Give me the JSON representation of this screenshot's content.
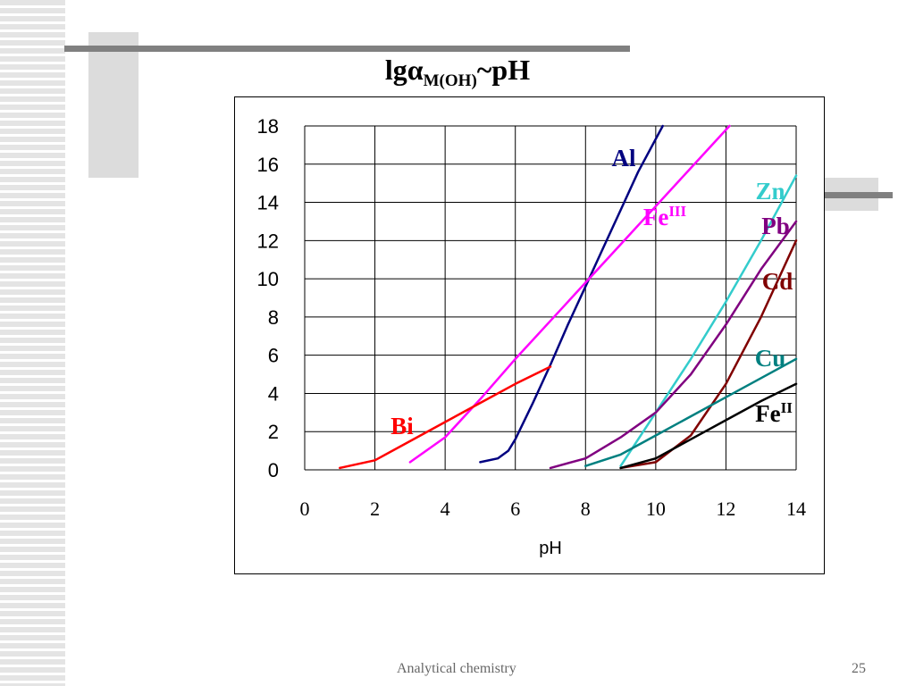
{
  "slide": {
    "title_main": "lgα",
    "title_sub": "M(OH)",
    "title_tail": "~pH",
    "footer_text": "Analytical chemistry",
    "page_number": "25"
  },
  "chart_data": {
    "type": "line",
    "xlabel": "pH",
    "ylabel": "",
    "xlim": [
      0,
      14
    ],
    "ylim": [
      0,
      18
    ],
    "xticks": [
      "0",
      "2",
      "4",
      "6",
      "8",
      "10",
      "12",
      "14"
    ],
    "yticks": [
      "0",
      "2",
      "4",
      "6",
      "8",
      "10",
      "12",
      "14",
      "16",
      "18"
    ],
    "grid": true,
    "legend": "inline labels",
    "series": [
      {
        "name": "Al",
        "sup": "",
        "color": "#000080",
        "x": [
          5.0,
          5.5,
          5.8,
          6.0,
          6.5,
          7.0,
          7.5,
          8.0,
          8.5,
          9.0,
          9.5,
          10.2
        ],
        "y": [
          0.4,
          0.6,
          1.0,
          1.6,
          3.5,
          5.5,
          7.6,
          9.6,
          11.6,
          13.6,
          15.6,
          18.0
        ]
      },
      {
        "name": "Fe",
        "sup": "III",
        "color": "#ff00ff",
        "x": [
          3.0,
          4.0,
          5.0,
          6.0,
          7.0,
          8.0,
          9.0,
          10.0,
          11.0,
          12.1
        ],
        "y": [
          0.4,
          1.7,
          3.7,
          5.8,
          7.8,
          9.8,
          11.8,
          13.8,
          15.8,
          18.0
        ]
      },
      {
        "name": "Bi",
        "sup": "",
        "color": "#ff0000",
        "x": [
          1.0,
          2.0,
          3.0,
          4.0,
          5.0,
          6.0,
          7.0
        ],
        "y": [
          0.1,
          0.5,
          1.5,
          2.5,
          3.5,
          4.5,
          5.4
        ]
      },
      {
        "name": "Zn",
        "sup": "",
        "color": "#33cccc",
        "x": [
          9.0,
          10.0,
          11.0,
          12.0,
          13.0,
          14.0
        ],
        "y": [
          0.2,
          3.0,
          5.8,
          8.8,
          12.0,
          15.4
        ]
      },
      {
        "name": "Pb",
        "sup": "",
        "color": "#800080",
        "x": [
          7.0,
          8.0,
          9.0,
          10.0,
          11.0,
          12.0,
          13.0,
          14.0
        ],
        "y": [
          0.1,
          0.6,
          1.7,
          3.0,
          5.0,
          7.6,
          10.5,
          13.0
        ]
      },
      {
        "name": "Cd",
        "sup": "",
        "color": "#800000",
        "x": [
          9.0,
          10.0,
          11.0,
          12.0,
          13.0,
          14.0
        ],
        "y": [
          0.1,
          0.4,
          1.8,
          4.5,
          8.0,
          12.0
        ]
      },
      {
        "name": "Cu",
        "sup": "",
        "color": "#008080",
        "x": [
          8.0,
          9.0,
          10.0,
          11.0,
          12.0,
          13.0,
          14.0
        ],
        "y": [
          0.2,
          0.8,
          1.8,
          2.8,
          3.8,
          4.8,
          5.8
        ]
      },
      {
        "name": "Fe",
        "sup": "II",
        "color": "#000000",
        "x": [
          9.0,
          10.0,
          11.0,
          12.0,
          13.0,
          14.0
        ],
        "y": [
          0.1,
          0.6,
          1.6,
          2.6,
          3.6,
          4.5
        ]
      }
    ]
  }
}
